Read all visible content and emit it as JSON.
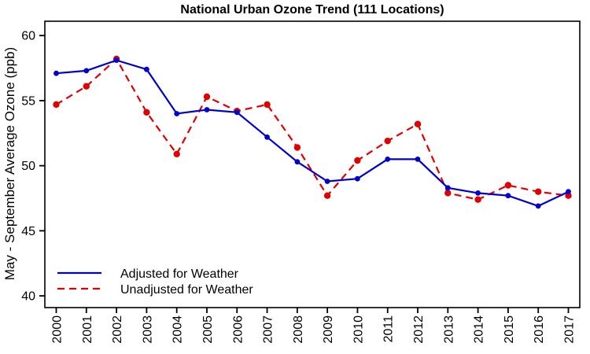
{
  "chart_data": {
    "type": "line",
    "title": "National Urban Ozone Trend (111 Locations)",
    "ylabel": "May - September Average Ozone (ppb)",
    "xlabel": "",
    "x": [
      2000,
      2001,
      2002,
      2003,
      2004,
      2005,
      2006,
      2007,
      2008,
      2009,
      2010,
      2011,
      2012,
      2013,
      2014,
      2015,
      2016,
      2017
    ],
    "series": [
      {
        "name": "Adjusted for Weather",
        "style": "solid",
        "marker": "circle",
        "color": "#0000cd",
        "values": [
          57.1,
          57.3,
          58.1,
          57.4,
          54.0,
          54.3,
          54.1,
          52.2,
          50.3,
          48.8,
          49.0,
          50.5,
          50.5,
          48.3,
          47.9,
          47.7,
          46.9,
          48.0
        ]
      },
      {
        "name": "Unadjusted for Weather",
        "style": "dashed",
        "marker": "circle",
        "color": "#e00000",
        "values": [
          54.7,
          56.1,
          58.2,
          54.1,
          50.9,
          55.3,
          54.2,
          54.7,
          51.4,
          47.7,
          50.4,
          51.9,
          53.2,
          47.9,
          47.4,
          48.5,
          48.0,
          47.7
        ]
      }
    ],
    "yticks": [
      40,
      45,
      50,
      55,
      60
    ],
    "ylim": [
      39.1,
      61.1
    ],
    "grid": false,
    "legend_position": "bottom-left",
    "axis_color": "#000000",
    "background_color": "#ffffff"
  }
}
